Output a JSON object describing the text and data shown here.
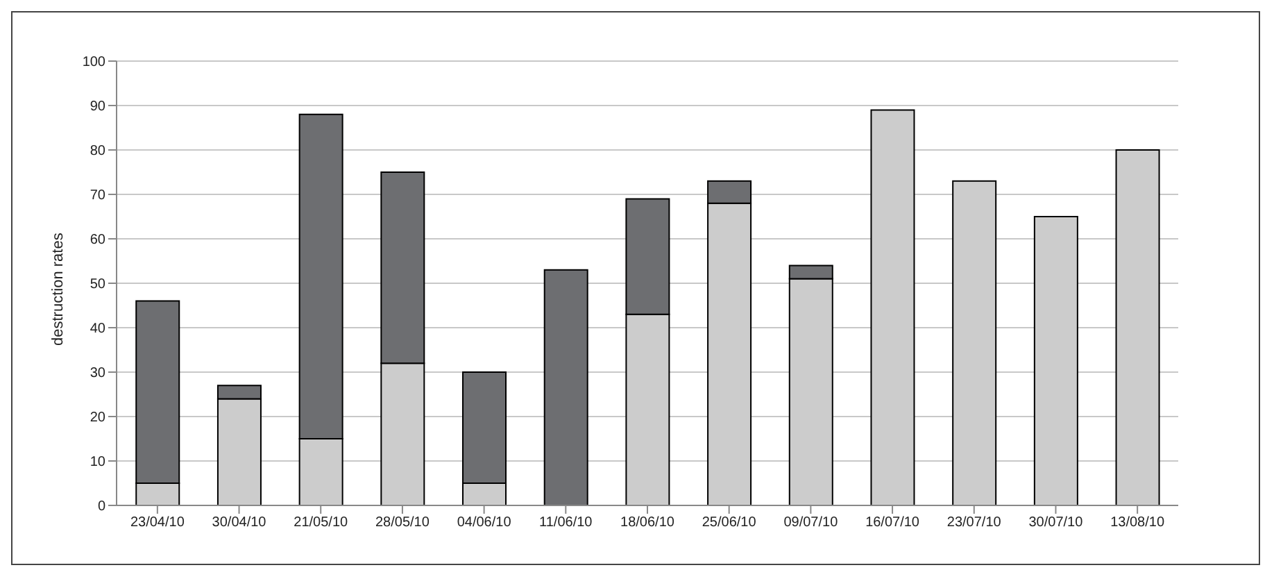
{
  "chart_data": {
    "type": "bar",
    "stacked": true,
    "ylabel": "destruction rates",
    "categories": [
      "23/04/10",
      "30/04/10",
      "21/05/10",
      "28/05/10",
      "04/06/10",
      "11/06/10",
      "18/06/10",
      "25/06/10",
      "09/07/10",
      "16/07/10",
      "23/07/10",
      "30/07/10",
      "13/08/10"
    ],
    "series": [
      {
        "color": "#cccccc",
        "values": [
          5,
          24,
          15,
          32,
          5,
          0,
          43,
          68,
          51,
          89,
          73,
          65,
          80
        ]
      },
      {
        "color": "#6d6e71",
        "values": [
          41,
          3,
          73,
          43,
          25,
          53,
          26,
          5,
          3,
          0,
          0,
          0,
          0
        ]
      }
    ],
    "ylim": [
      0,
      100
    ],
    "yticks": [
      0,
      10,
      20,
      30,
      40,
      50,
      60,
      70,
      80,
      90,
      100
    ],
    "grid": "y",
    "legend": false
  }
}
